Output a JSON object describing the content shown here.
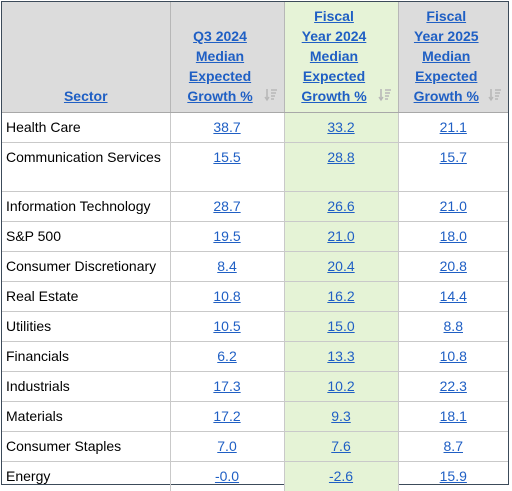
{
  "table": {
    "headers": {
      "sector": "Sector",
      "q3": [
        "Q3 2024",
        "Median",
        "Expected",
        "Growth %"
      ],
      "fy24": [
        "Fiscal",
        "Year 2024",
        "Median",
        "Expected",
        "Growth %"
      ],
      "fy25": [
        "Fiscal",
        "Year 2025",
        "Median",
        "Expected",
        "Growth %"
      ]
    },
    "rows": [
      {
        "sector": "Health Care",
        "q3": "38.7",
        "fy24": "33.2",
        "fy25": "21.1"
      },
      {
        "sector": "Communication Services",
        "q3": "15.5",
        "fy24": "28.8",
        "fy25": "15.7"
      },
      {
        "sector": "Information Technology",
        "q3": "28.7",
        "fy24": "26.6",
        "fy25": "21.0"
      },
      {
        "sector": "S&P 500",
        "q3": "19.5",
        "fy24": "21.0",
        "fy25": "18.0"
      },
      {
        "sector": "Consumer Discretionary",
        "q3": "8.4",
        "fy24": "20.4",
        "fy25": "20.8"
      },
      {
        "sector": "Real Estate",
        "q3": "10.8",
        "fy24": "16.2",
        "fy25": "14.4"
      },
      {
        "sector": "Utilities",
        "q3": "10.5",
        "fy24": "15.0",
        "fy25": "8.8"
      },
      {
        "sector": "Financials",
        "q3": "6.2",
        "fy24": "13.3",
        "fy25": "10.8"
      },
      {
        "sector": "Industrials",
        "q3": "17.3",
        "fy24": "10.2",
        "fy25": "22.3"
      },
      {
        "sector": "Materials",
        "q3": "17.2",
        "fy24": "9.3",
        "fy25": "18.1"
      },
      {
        "sector": "Consumer Staples",
        "q3": "7.0",
        "fy24": "7.6",
        "fy25": "8.7"
      },
      {
        "sector": "Energy",
        "q3": "-0.0",
        "fy24": "-2.6",
        "fy25": "15.9"
      }
    ],
    "highlight_color": "#e5f3d6",
    "link_color": "#1f5fc4",
    "sort_icon": "sort-descending-icon"
  }
}
